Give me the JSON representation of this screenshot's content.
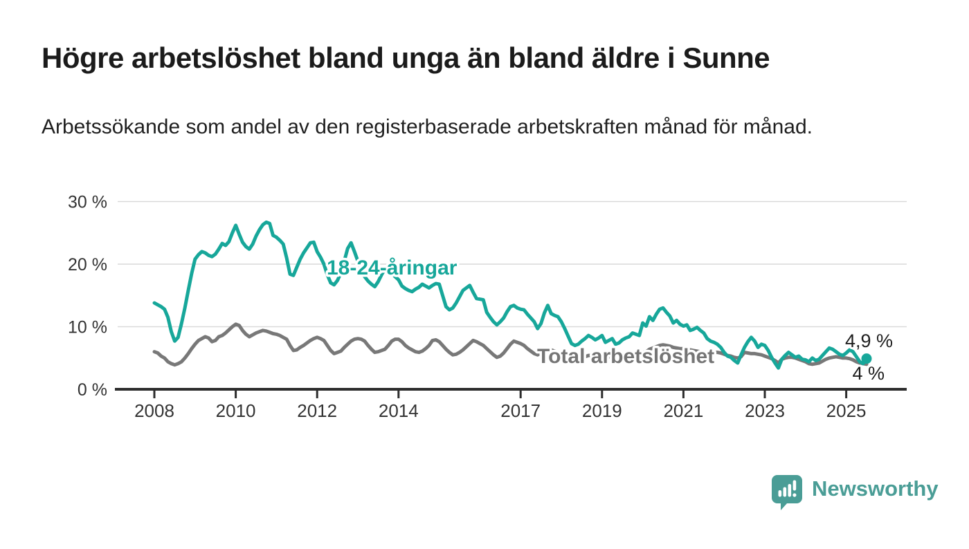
{
  "header": {
    "title": "Högre arbetslöshet bland unga än bland äldre i Sunne",
    "subtitle": "Arbetssökande som andel av den registerbaserade arbetskraften månad för månad."
  },
  "branding": {
    "logo_text": "Newsworthy",
    "logo_color": "#4a9d96"
  },
  "chart_data": {
    "type": "line",
    "title": "Högre arbetslöshet bland unga än bland äldre i Sunne",
    "subtitle": "Arbetssökande som andel av den registerbaserade arbetskraften månad för månad.",
    "unit": "%",
    "frequency": "monthly",
    "start_year": 2008,
    "start_month": 1,
    "grid": true,
    "ylim": [
      0,
      30
    ],
    "y_axis": {
      "ticks": [
        {
          "value": 0,
          "label": "0 %"
        },
        {
          "value": 10,
          "label": "10 %"
        },
        {
          "value": 20,
          "label": "20 %"
        },
        {
          "value": 30,
          "label": "30 %"
        }
      ]
    },
    "x_axis": {
      "ticks": [
        {
          "value": 2008,
          "label": "2008"
        },
        {
          "value": 2010,
          "label": "2010"
        },
        {
          "value": 2012,
          "label": "2012"
        },
        {
          "value": 2014,
          "label": "2014"
        },
        {
          "value": 2017,
          "label": "2017"
        },
        {
          "value": 2019,
          "label": "2019"
        },
        {
          "value": 2021,
          "label": "2021"
        },
        {
          "value": 2023,
          "label": "2023"
        },
        {
          "value": 2025,
          "label": "2025"
        }
      ]
    },
    "series": [
      {
        "name": "Total arbetslöshet",
        "color": "#787878",
        "end_dot": false,
        "values": [
          6,
          5.8,
          5.3,
          5,
          4.4,
          4.1,
          3.9,
          4.1,
          4.4,
          5,
          5.7,
          6.5,
          7.2,
          7.8,
          8.1,
          8.4,
          8.2,
          7.6,
          7.8,
          8.4,
          8.6,
          9,
          9.5,
          10,
          10.4,
          10.2,
          9.4,
          8.8,
          8.4,
          8.7,
          9,
          9.2,
          9.4,
          9.3,
          9.1,
          8.9,
          8.8,
          8.6,
          8.3,
          8,
          7,
          6.2,
          6.3,
          6.7,
          7,
          7.4,
          7.8,
          8.1,
          8.3,
          8.1,
          7.8,
          7,
          6.2,
          5.7,
          5.9,
          6.1,
          6.7,
          7.2,
          7.7,
          8,
          8.1,
          8,
          7.7,
          7,
          6.4,
          5.9,
          6,
          6.2,
          6.4,
          7,
          7.7,
          8,
          8,
          7.6,
          7,
          6.6,
          6.3,
          6,
          5.9,
          6.1,
          6.5,
          7,
          7.8,
          7.9,
          7.6,
          7,
          6.4,
          5.9,
          5.5,
          5.6,
          5.9,
          6.3,
          6.8,
          7.3,
          7.8,
          7.6,
          7.3,
          7,
          6.5,
          6,
          5.5,
          5.1,
          5.3,
          5.8,
          6.5,
          7.2,
          7.7,
          7.5,
          7.3,
          7,
          6.5,
          6.1,
          5.7,
          5.5,
          5.8,
          6.2,
          6.5,
          6.3,
          6.1,
          5.9,
          5.8,
          5.6,
          5.4,
          5.2,
          5,
          4.9,
          5,
          5.2,
          5.4,
          5.4,
          5.3,
          5.4,
          5.5,
          5.4,
          5.2,
          5.1,
          5,
          4.9,
          5,
          5.2,
          5.3,
          5.4,
          5.5,
          5.7,
          5.9,
          6,
          6.4,
          6.6,
          6.8,
          7,
          7.1,
          7,
          6.9,
          6.7,
          6.6,
          6.5,
          6.5,
          6.4,
          6.3,
          6.2,
          6.1,
          6,
          5.9,
          5.9,
          5.8,
          5.9,
          5.9,
          5.8,
          5.6,
          5.4,
          5.3,
          5.1,
          5,
          5.2,
          5.9,
          5.8,
          5.7,
          5.7,
          5.6,
          5.5,
          5.3,
          5.1,
          4.9,
          4.6,
          4.2,
          4.8,
          5,
          5.1,
          5.1,
          5,
          4.8,
          4.6,
          4.4,
          4.1,
          4,
          4.1,
          4.2,
          4.5,
          4.8,
          5,
          5.1,
          5.2,
          5.1,
          5,
          5,
          4.9,
          4.7,
          4.4,
          4.2,
          4.1,
          4
        ]
      },
      {
        "name": "18-24-åringar",
        "color": "#17a79a",
        "end_dot": true,
        "values": [
          13.8,
          13.5,
          13.2,
          12.8,
          11.5,
          9.2,
          7.7,
          8.3,
          10.5,
          13,
          15.8,
          18.5,
          20.8,
          21.5,
          22,
          21.8,
          21.4,
          21.2,
          21.6,
          22.4,
          23.3,
          23,
          23.6,
          25,
          26.2,
          24.8,
          23.5,
          22.8,
          22.4,
          23.2,
          24.5,
          25.5,
          26.3,
          26.7,
          26.5,
          24.6,
          24.3,
          23.8,
          23.2,
          21,
          18.4,
          18.2,
          19.5,
          20.8,
          21.8,
          22.6,
          23.4,
          23.5,
          22,
          21.1,
          20,
          18.3,
          17,
          16.7,
          17.4,
          18.6,
          20.5,
          22.5,
          23.4,
          22,
          20.5,
          19.2,
          18,
          17.3,
          16.8,
          16.4,
          17.2,
          18.3,
          19.2,
          19,
          18.5,
          18,
          17.5,
          16.5,
          16.1,
          15.8,
          15.6,
          16,
          16.3,
          16.8,
          16.5,
          16.2,
          16.6,
          16.9,
          16.8,
          15,
          13.2,
          12.7,
          13,
          13.8,
          14.8,
          15.8,
          16.2,
          16.6,
          15.5,
          14.5,
          14.4,
          14.3,
          12.3,
          11.5,
          10.8,
          10.3,
          10.8,
          11.4,
          12.4,
          13.2,
          13.4,
          13,
          12.8,
          12.7,
          12,
          11.4,
          10.8,
          9.7,
          10.5,
          12.2,
          13.4,
          12.1,
          11.8,
          11.6,
          10.8,
          9.7,
          8.5,
          7.3,
          7,
          7.2,
          7.7,
          8.1,
          8.6,
          8.3,
          7.9,
          8.2,
          8.6,
          7.5,
          7.8,
          8.1,
          7.2,
          7.4,
          7.9,
          8.2,
          8.4,
          9,
          8.8,
          8.6,
          10.6,
          10.1,
          11.6,
          11,
          12,
          12.8,
          13,
          12.3,
          11.7,
          10.6,
          11,
          10.4,
          10.1,
          10.3,
          9.4,
          9.6,
          9.9,
          9.4,
          9,
          8.1,
          7.7,
          7.5,
          7.2,
          6.7,
          5.9,
          5.3,
          5.1,
          4.6,
          4.2,
          5.5,
          6.7,
          7.6,
          8.3,
          7.7,
          6.7,
          7.2,
          7,
          6.2,
          5.1,
          4.2,
          3.4,
          4.8,
          5.4,
          5.9,
          5.5,
          5.1,
          5.3,
          4.8,
          4.7,
          4.4,
          5,
          4.6,
          4.8,
          5.4,
          6,
          6.6,
          6.4,
          6,
          5.6,
          5.4,
          5.8,
          6.3,
          6,
          5.2,
          4.4,
          4.1,
          4.9
        ]
      }
    ],
    "annotations": {
      "series_label_youth": "18-24-åringar",
      "series_label_total": "Total arbetslöshet",
      "end_label_youth": "4,9 %",
      "end_label_total": "4 %"
    },
    "legend": "inline-labels",
    "colors": {
      "youth": "#17a79a",
      "total": "#787878",
      "grid": "#d9d9d9",
      "axis": "#2d2d2d",
      "text": "#333333"
    }
  }
}
